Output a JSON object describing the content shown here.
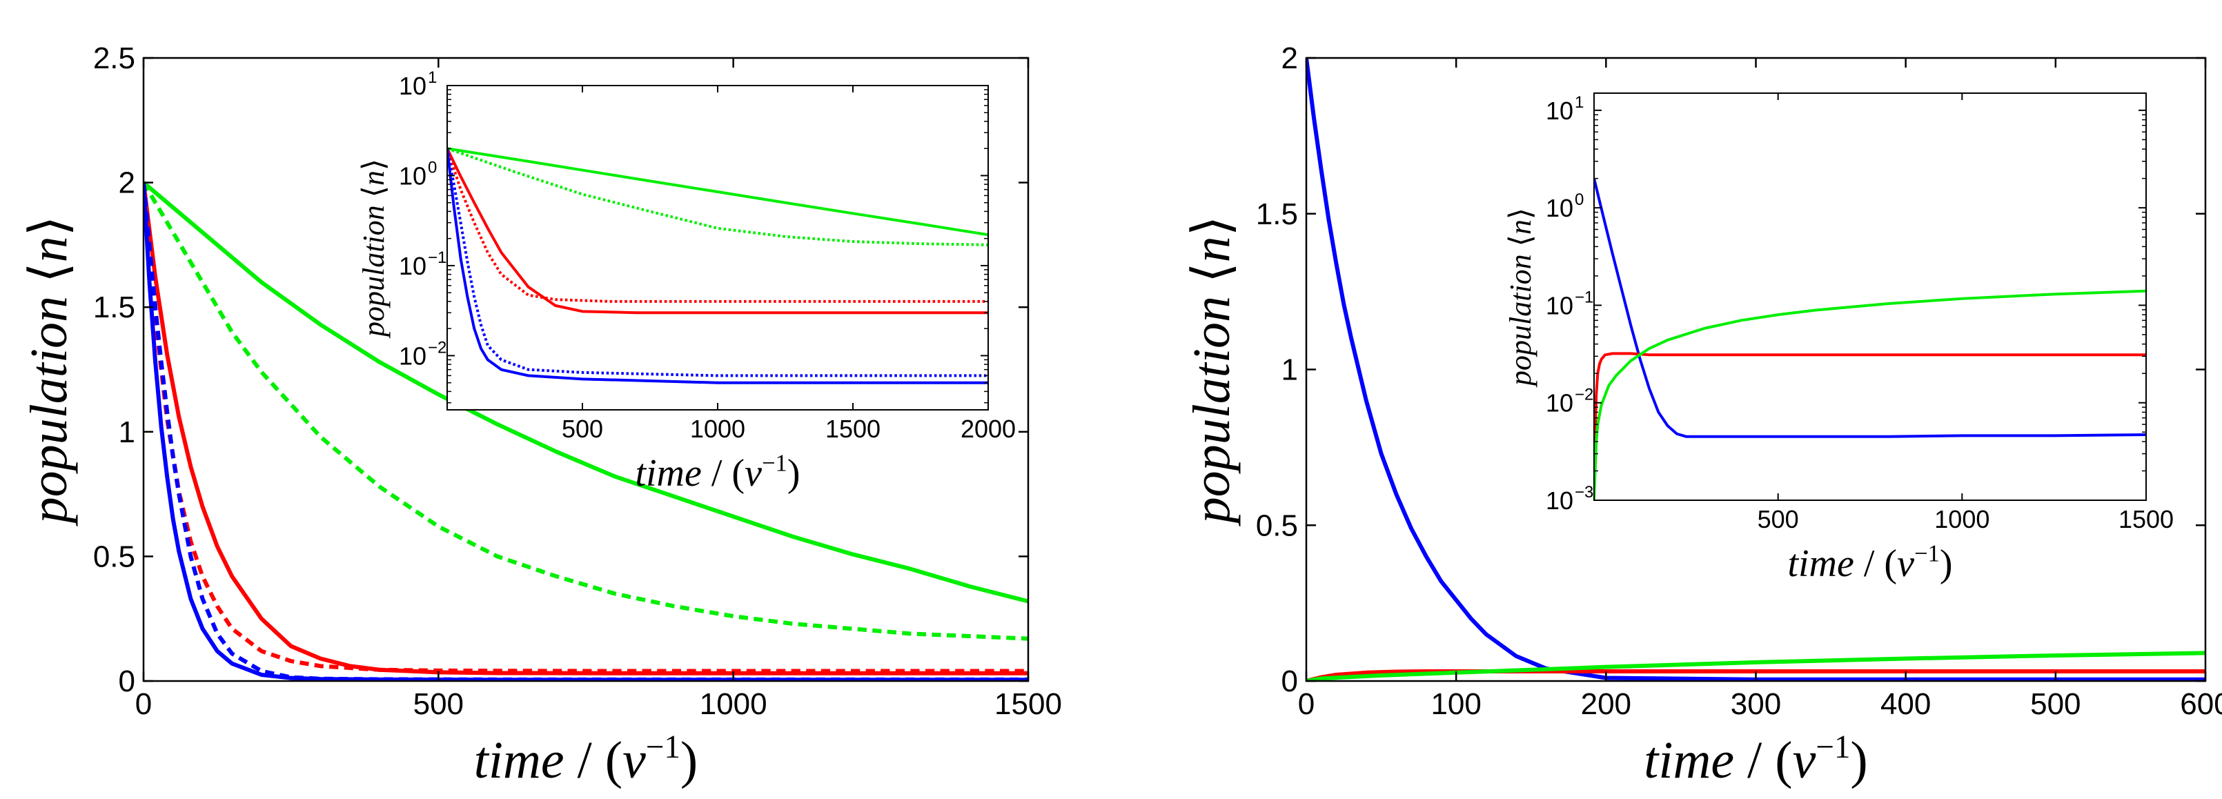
{
  "chart_data": [
    {
      "type": "line",
      "title": "",
      "xlabel": "time / (ν⁻¹)",
      "ylabel": "population ⟨n⟩",
      "xlim": [
        0,
        1500
      ],
      "ylim": [
        0,
        2.5
      ],
      "xticks": [
        "0",
        "500",
        "1000",
        "1500"
      ],
      "yticks": [
        "0",
        "0.5",
        "1",
        "1.5",
        "2",
        "2.5"
      ],
      "grid": false,
      "series": [
        {
          "color": "#00ee00",
          "style": "solid",
          "x": [
            0,
            25,
            50,
            100,
            150,
            200,
            300,
            400,
            500,
            600,
            700,
            800,
            900,
            1000,
            1100,
            1200,
            1300,
            1400,
            1500
          ],
          "y": [
            2.0,
            1.95,
            1.9,
            1.8,
            1.7,
            1.6,
            1.43,
            1.28,
            1.15,
            1.03,
            0.92,
            0.82,
            0.74,
            0.66,
            0.58,
            0.51,
            0.45,
            0.38,
            0.32
          ]
        },
        {
          "color": "#00ee00",
          "style": "dashed",
          "x": [
            0,
            25,
            50,
            100,
            150,
            200,
            300,
            400,
            500,
            600,
            700,
            800,
            900,
            1000,
            1100,
            1200,
            1300,
            1400,
            1500
          ],
          "y": [
            2.0,
            1.9,
            1.8,
            1.6,
            1.4,
            1.24,
            0.98,
            0.78,
            0.62,
            0.5,
            0.42,
            0.35,
            0.3,
            0.26,
            0.23,
            0.21,
            0.19,
            0.18,
            0.17
          ]
        },
        {
          "color": "#ff0000",
          "style": "solid",
          "x": [
            0,
            20,
            40,
            60,
            80,
            100,
            125,
            150,
            200,
            250,
            300,
            350,
            400,
            500,
            600,
            800,
            1000,
            1200,
            1500
          ],
          "y": [
            2.0,
            1.62,
            1.31,
            1.06,
            0.86,
            0.7,
            0.54,
            0.42,
            0.25,
            0.14,
            0.09,
            0.06,
            0.045,
            0.035,
            0.032,
            0.031,
            0.031,
            0.031,
            0.031
          ]
        },
        {
          "color": "#ff0000",
          "style": "dashed",
          "x": [
            0,
            20,
            40,
            60,
            80,
            100,
            125,
            150,
            200,
            250,
            300,
            400,
            500,
            600,
            800,
            1000,
            1200,
            1500
          ],
          "y": [
            2.0,
            1.45,
            1.05,
            0.76,
            0.56,
            0.42,
            0.3,
            0.21,
            0.12,
            0.08,
            0.06,
            0.045,
            0.042,
            0.041,
            0.04,
            0.04,
            0.04,
            0.04
          ]
        },
        {
          "color": "#0000ff",
          "style": "solid",
          "x": [
            0,
            10,
            20,
            30,
            40,
            50,
            60,
            80,
            100,
            125,
            150,
            200,
            250,
            300,
            400,
            600,
            800,
            1000,
            1200,
            1500
          ],
          "y": [
            2.0,
            1.6,
            1.28,
            1.02,
            0.82,
            0.65,
            0.52,
            0.33,
            0.21,
            0.12,
            0.07,
            0.025,
            0.012,
            0.008,
            0.006,
            0.005,
            0.005,
            0.005,
            0.005,
            0.005
          ]
        },
        {
          "color": "#0000ff",
          "style": "dashed",
          "x": [
            0,
            10,
            20,
            30,
            40,
            50,
            60,
            80,
            100,
            125,
            150,
            200,
            250,
            300,
            400,
            600,
            800,
            1000,
            1200,
            1500
          ],
          "y": [
            2.0,
            1.75,
            1.5,
            1.28,
            1.08,
            0.9,
            0.75,
            0.5,
            0.33,
            0.19,
            0.11,
            0.04,
            0.015,
            0.009,
            0.007,
            0.006,
            0.006,
            0.006,
            0.006,
            0.006
          ]
        }
      ],
      "inset": {
        "type": "line",
        "xlabel": "time / (ν⁻¹)",
        "ylabel": "population ⟨n⟩",
        "xlim": [
          0,
          2000
        ],
        "ylim": [
          0.0025,
          10
        ],
        "yscale": "log",
        "xticks": [
          "500",
          "1000",
          "1500",
          "2000"
        ],
        "ytick_mantissa": [
          "10",
          "10",
          "10",
          "10"
        ],
        "ytick_exponents": [
          "1",
          "0",
          "-1",
          "-2"
        ],
        "series": [
          {
            "color": "#00ee00",
            "style": "solid",
            "x": [
              0,
              250,
              500,
              750,
              1000,
              1250,
              1500,
              1750,
              2000
            ],
            "y": [
              2.0,
              1.52,
              1.15,
              0.87,
              0.66,
              0.5,
              0.38,
              0.29,
              0.22
            ]
          },
          {
            "color": "#00ee00",
            "style": "dotted",
            "x": [
              0,
              250,
              500,
              750,
              1000,
              1250,
              1500,
              1750,
              2000
            ],
            "y": [
              2.0,
              1.1,
              0.62,
              0.4,
              0.26,
              0.21,
              0.185,
              0.175,
              0.17
            ]
          },
          {
            "color": "#ff0000",
            "style": "solid",
            "x": [
              0,
              50,
              100,
              150,
              200,
              300,
              400,
              500,
              700,
              1000,
              1500,
              2000
            ],
            "y": [
              2.0,
              0.98,
              0.5,
              0.26,
              0.14,
              0.058,
              0.036,
              0.031,
              0.03,
              0.03,
              0.03,
              0.03
            ]
          },
          {
            "color": "#ff0000",
            "style": "dotted",
            "x": [
              0,
              50,
              100,
              150,
              200,
              300,
              400,
              600,
              1000,
              1500,
              2000
            ],
            "y": [
              2.0,
              0.7,
              0.3,
              0.14,
              0.08,
              0.047,
              0.042,
              0.04,
              0.04,
              0.04,
              0.04
            ]
          },
          {
            "color": "#0000ff",
            "style": "solid",
            "x": [
              0,
              25,
              50,
              75,
              100,
              125,
              150,
              200,
              300,
              500,
              1000,
              1500,
              2000
            ],
            "y": [
              2.0,
              0.45,
              0.12,
              0.045,
              0.02,
              0.012,
              0.009,
              0.007,
              0.006,
              0.0055,
              0.005,
              0.005,
              0.005
            ]
          },
          {
            "color": "#0000ff",
            "style": "dotted",
            "x": [
              0,
              25,
              50,
              75,
              100,
              125,
              150,
              200,
              300,
              500,
              1000,
              1500,
              2000
            ],
            "y": [
              2.0,
              0.8,
              0.3,
              0.11,
              0.045,
              0.022,
              0.013,
              0.009,
              0.007,
              0.0065,
              0.006,
              0.006,
              0.006
            ]
          }
        ]
      }
    },
    {
      "type": "line",
      "title": "",
      "xlabel": "time / (ν⁻¹)",
      "ylabel": "population ⟨n⟩",
      "xlim": [
        0,
        600
      ],
      "ylim": [
        0,
        2
      ],
      "xticks": [
        "0",
        "100",
        "200",
        "300",
        "400",
        "500",
        "600"
      ],
      "yticks": [
        "0",
        "0.5",
        "1",
        "1.5",
        "2"
      ],
      "grid": false,
      "series": [
        {
          "color": "#0000ff",
          "style": "solid",
          "x": [
            0,
            5,
            10,
            15,
            20,
            25,
            30,
            40,
            50,
            60,
            70,
            80,
            90,
            100,
            110,
            120,
            140,
            160,
            200,
            300,
            400,
            500,
            600
          ],
          "y": [
            2.0,
            1.81,
            1.64,
            1.48,
            1.34,
            1.21,
            1.1,
            0.9,
            0.73,
            0.6,
            0.49,
            0.4,
            0.32,
            0.26,
            0.2,
            0.15,
            0.08,
            0.04,
            0.01,
            0.005,
            0.005,
            0.005,
            0.005
          ]
        },
        {
          "color": "#ff0000",
          "style": "solid",
          "x": [
            0,
            10,
            20,
            40,
            60,
            80,
            100,
            150,
            200,
            300,
            400,
            500,
            600
          ],
          "y": [
            0.0,
            0.012,
            0.02,
            0.027,
            0.03,
            0.031,
            0.031,
            0.031,
            0.031,
            0.031,
            0.031,
            0.031,
            0.031
          ]
        },
        {
          "color": "#00ee00",
          "style": "solid",
          "x": [
            0,
            10,
            25,
            50,
            100,
            150,
            200,
            300,
            400,
            500,
            600
          ],
          "y": [
            0.0,
            0.008,
            0.012,
            0.018,
            0.027,
            0.036,
            0.045,
            0.06,
            0.072,
            0.082,
            0.09
          ]
        }
      ],
      "inset": {
        "type": "line",
        "xlabel": "time / (ν⁻¹)",
        "ylabel": "population ⟨n⟩",
        "xlim": [
          0,
          1500
        ],
        "ylim": [
          0.001,
          15
        ],
        "yscale": "log",
        "xticks": [
          "500",
          "1000",
          "1500"
        ],
        "ytick_mantissa": [
          "10",
          "10",
          "10",
          "10",
          "10"
        ],
        "ytick_exponents": [
          "1",
          "0",
          "-1",
          "-2",
          "-3"
        ],
        "series": [
          {
            "color": "#0000ff",
            "style": "solid",
            "x": [
              0,
              25,
              50,
              75,
              100,
              125,
              150,
              175,
              200,
              225,
              250,
              300,
              400,
              600,
              800,
              1000,
              1250,
              1500
            ],
            "y": [
              2.0,
              0.82,
              0.34,
              0.145,
              0.062,
              0.028,
              0.014,
              0.008,
              0.0058,
              0.0048,
              0.0045,
              0.0045,
              0.0045,
              0.0045,
              0.0045,
              0.0046,
              0.0046,
              0.0047
            ]
          },
          {
            "color": "#ff0000",
            "style": "solid",
            "x": [
              0,
              3,
              6,
              10,
              15,
              20,
              30,
              50,
              80,
              100,
              150,
              200,
              300,
              500,
              1000,
              1500
            ],
            "y": [
              0.001,
              0.005,
              0.012,
              0.02,
              0.025,
              0.028,
              0.031,
              0.032,
              0.032,
              0.032,
              0.031,
              0.031,
              0.031,
              0.031,
              0.031,
              0.031
            ]
          },
          {
            "color": "#00ee00",
            "style": "solid",
            "x": [
              0,
              3,
              6,
              10,
              20,
              40,
              60,
              100,
              150,
              200,
              300,
              400,
              500,
              600,
              800,
              1000,
              1250,
              1500
            ],
            "y": [
              0.001,
              0.002,
              0.004,
              0.006,
              0.0095,
              0.015,
              0.019,
              0.027,
              0.036,
              0.044,
              0.058,
              0.07,
              0.08,
              0.089,
              0.104,
              0.117,
              0.13,
              0.14
            ]
          }
        ]
      }
    }
  ]
}
